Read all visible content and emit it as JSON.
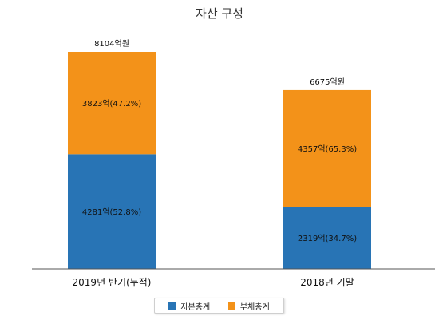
{
  "chart_data": {
    "type": "bar",
    "stacked": true,
    "title": "자산 구성",
    "categories": [
      "2019년 반기(누적)",
      "2018년 기말"
    ],
    "totals": [
      "8104억원",
      "6675억원"
    ],
    "total_values": [
      8104,
      6675
    ],
    "series": [
      {
        "name": "자본총계",
        "color": "#2874b5",
        "values": [
          4281,
          2319
        ],
        "labels": [
          "4281억(52.8%)",
          "2319억(34.7%)"
        ]
      },
      {
        "name": "부채총계",
        "color": "#f39219",
        "values": [
          3823,
          4357
        ],
        "labels": [
          "3823억(47.2%)",
          "4357억(65.3%)"
        ]
      }
    ],
    "ylim": [
      0,
      8104
    ],
    "grid": false,
    "legend_position": "bottom"
  }
}
